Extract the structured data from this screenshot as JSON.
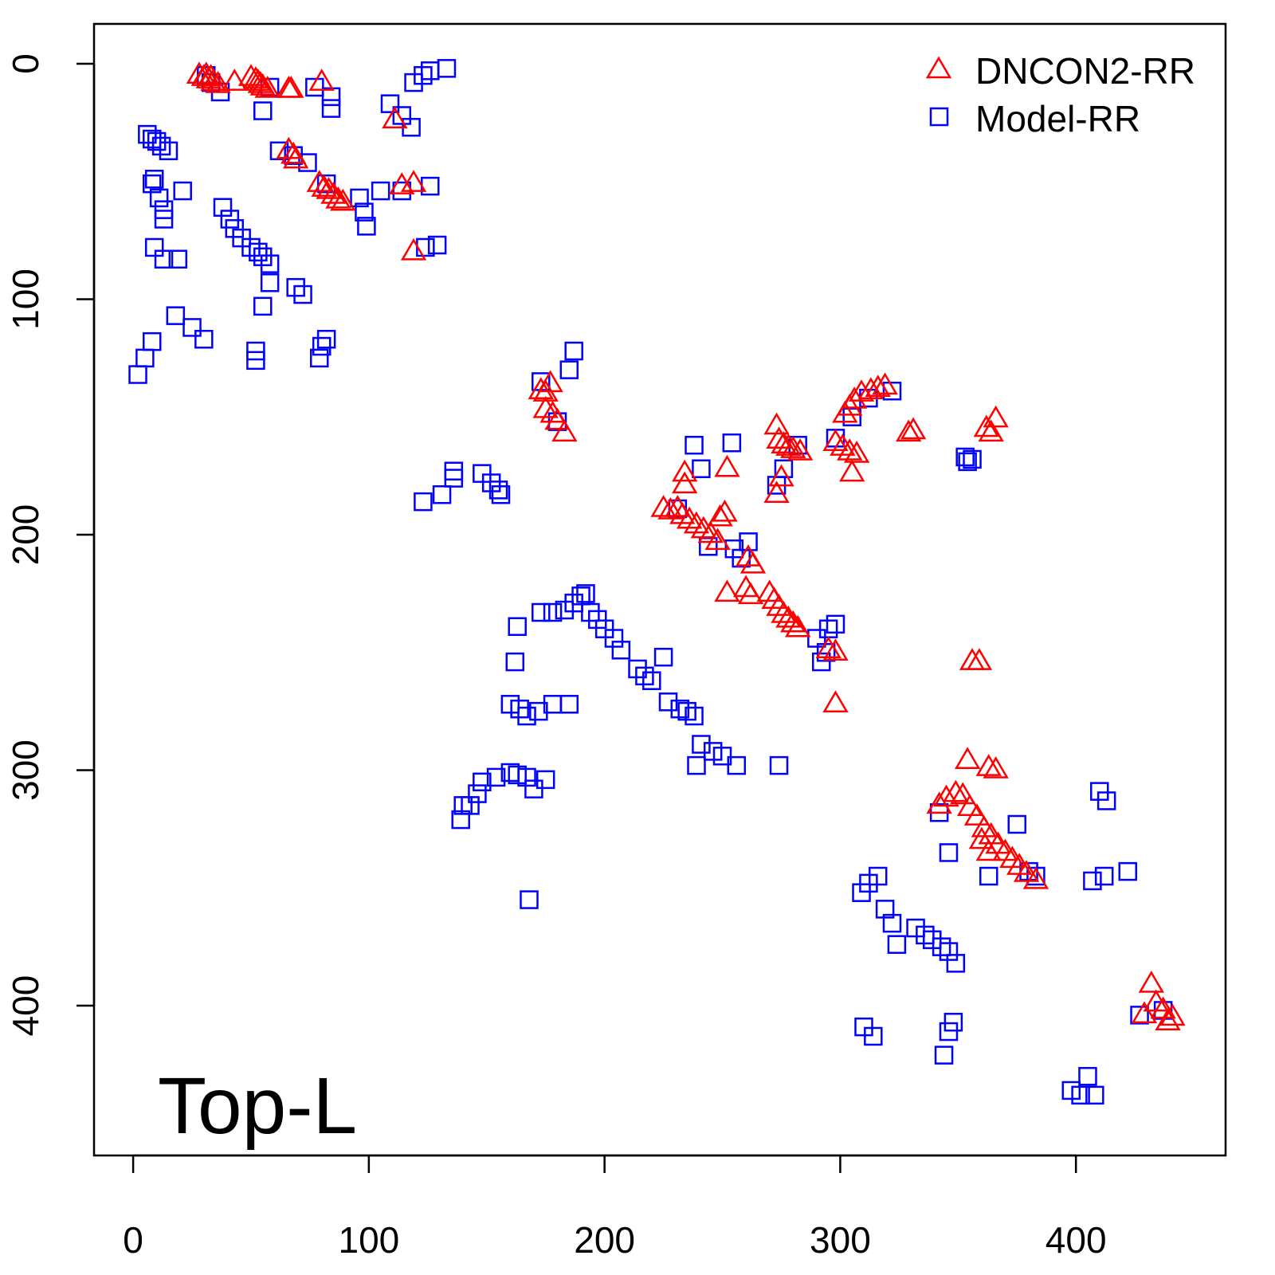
{
  "chart_data": {
    "type": "scatter",
    "title": "",
    "annotation": "Top-L",
    "xlabel": "",
    "ylabel": "",
    "xlim": [
      -16.6,
      463.5
    ],
    "ylim": [
      463.6,
      -16.9
    ],
    "y_inverted": true,
    "xticks": [
      0,
      100,
      200,
      300,
      400
    ],
    "yticks": [
      0,
      100,
      200,
      300,
      400
    ],
    "grid": false,
    "legend_position": "top-right",
    "series": [
      {
        "name": "DNCON2-RR",
        "marker": "triangle-open",
        "color": "#ff0000",
        "points": [
          [
            28,
            5
          ],
          [
            30,
            6
          ],
          [
            31,
            5
          ],
          [
            32,
            7
          ],
          [
            33,
            6
          ],
          [
            34,
            8
          ],
          [
            36,
            9
          ],
          [
            43,
            8
          ],
          [
            50,
            6
          ],
          [
            52,
            7
          ],
          [
            53,
            8
          ],
          [
            54,
            9
          ],
          [
            55,
            10
          ],
          [
            57,
            11
          ],
          [
            66,
            11
          ],
          [
            67,
            11
          ],
          [
            80,
            8
          ],
          [
            111,
            24
          ],
          [
            114,
            52
          ],
          [
            119,
            51
          ],
          [
            119,
            80
          ],
          [
            66,
            37
          ],
          [
            68,
            39
          ],
          [
            69,
            41
          ],
          [
            79,
            51
          ],
          [
            81,
            53
          ],
          [
            83,
            54
          ],
          [
            85,
            56
          ],
          [
            87,
            58
          ],
          [
            89,
            59
          ],
          [
            173,
            139
          ],
          [
            175,
            140
          ],
          [
            177,
            136
          ],
          [
            175,
            147
          ],
          [
            178,
            149
          ],
          [
            180,
            152
          ],
          [
            183,
            157
          ],
          [
            366,
            151
          ],
          [
            364,
            157
          ],
          [
            362,
            155
          ],
          [
            329,
            157
          ],
          [
            331,
            156
          ],
          [
            273,
            154
          ],
          [
            274,
            160
          ],
          [
            276,
            162
          ],
          [
            278,
            163
          ],
          [
            280,
            164
          ],
          [
            283,
            165
          ],
          [
            302,
            149
          ],
          [
            304,
            146
          ],
          [
            306,
            143
          ],
          [
            309,
            140
          ],
          [
            313,
            139
          ],
          [
            316,
            138
          ],
          [
            319,
            137
          ],
          [
            298,
            161
          ],
          [
            301,
            163
          ],
          [
            304,
            165
          ],
          [
            307,
            166
          ],
          [
            305,
            174
          ],
          [
            252,
            172
          ],
          [
            234,
            174
          ],
          [
            234,
            179
          ],
          [
            275,
            176
          ],
          [
            273,
            183
          ],
          [
            225,
            189
          ],
          [
            228,
            190
          ],
          [
            231,
            189
          ],
          [
            233,
            192
          ],
          [
            236,
            194
          ],
          [
            239,
            196
          ],
          [
            242,
            198
          ],
          [
            245,
            200
          ],
          [
            248,
            203
          ],
          [
            251,
            191
          ],
          [
            249,
            193
          ],
          [
            261,
            210
          ],
          [
            263,
            213
          ],
          [
            252,
            225
          ],
          [
            260,
            223
          ],
          [
            262,
            226
          ],
          [
            270,
            225
          ],
          [
            272,
            228
          ],
          [
            274,
            231
          ],
          [
            276,
            234
          ],
          [
            278,
            236
          ],
          [
            280,
            238
          ],
          [
            282,
            240
          ],
          [
            295,
            249
          ],
          [
            298,
            250
          ],
          [
            298,
            272
          ],
          [
            356,
            254
          ],
          [
            359,
            254
          ],
          [
            354,
            296
          ],
          [
            363,
            299
          ],
          [
            366,
            300
          ],
          [
            342,
            315
          ],
          [
            345,
            312
          ],
          [
            349,
            310
          ],
          [
            352,
            311
          ],
          [
            355,
            316
          ],
          [
            358,
            320
          ],
          [
            361,
            325
          ],
          [
            364,
            328
          ],
          [
            367,
            332
          ],
          [
            370,
            335
          ],
          [
            373,
            338
          ],
          [
            376,
            341
          ],
          [
            379,
            344
          ],
          [
            383,
            347
          ],
          [
            360,
            330
          ],
          [
            363,
            335
          ],
          [
            432,
            391
          ],
          [
            434,
            399
          ],
          [
            437,
            402
          ],
          [
            439,
            407
          ],
          [
            429,
            404
          ],
          [
            441,
            405
          ]
        ]
      },
      {
        "name": "Model-RR",
        "marker": "square-open",
        "color": "#0000ff",
        "points": [
          [
            31,
            5
          ],
          [
            33,
            8
          ],
          [
            37,
            12
          ],
          [
            58,
            10
          ],
          [
            55,
            20
          ],
          [
            84,
            14
          ],
          [
            84,
            19
          ],
          [
            77,
            10
          ],
          [
            109,
            17
          ],
          [
            114,
            22
          ],
          [
            118,
            27
          ],
          [
            119,
            8
          ],
          [
            123,
            5
          ],
          [
            126,
            3
          ],
          [
            133,
            2
          ],
          [
            6,
            30
          ],
          [
            8,
            32
          ],
          [
            10,
            33
          ],
          [
            12,
            35
          ],
          [
            15,
            37
          ],
          [
            8,
            51
          ],
          [
            9,
            49
          ],
          [
            11,
            57
          ],
          [
            13,
            62
          ],
          [
            13,
            66
          ],
          [
            21,
            54
          ],
          [
            9,
            78
          ],
          [
            13,
            83
          ],
          [
            19,
            83
          ],
          [
            38,
            61
          ],
          [
            41,
            66
          ],
          [
            43,
            70
          ],
          [
            46,
            74
          ],
          [
            50,
            78
          ],
          [
            53,
            80
          ],
          [
            55,
            82
          ],
          [
            58,
            85
          ],
          [
            58,
            93
          ],
          [
            69,
            95
          ],
          [
            72,
            98
          ],
          [
            55,
            103
          ],
          [
            62,
            37
          ],
          [
            68,
            39
          ],
          [
            74,
            42
          ],
          [
            82,
            51
          ],
          [
            96,
            57
          ],
          [
            98,
            63
          ],
          [
            99,
            69
          ],
          [
            105,
            54
          ],
          [
            114,
            54
          ],
          [
            126,
            52
          ],
          [
            124,
            78
          ],
          [
            129,
            77
          ],
          [
            18,
            107
          ],
          [
            25,
            112
          ],
          [
            30,
            117
          ],
          [
            8,
            118
          ],
          [
            5,
            125
          ],
          [
            2,
            132
          ],
          [
            52,
            122
          ],
          [
            52,
            126
          ],
          [
            79,
            125
          ],
          [
            82,
            117
          ],
          [
            80,
            120
          ],
          [
            173,
            135
          ],
          [
            187,
            122
          ],
          [
            185,
            130
          ],
          [
            180,
            152
          ],
          [
            136,
            176
          ],
          [
            136,
            173
          ],
          [
            131,
            183
          ],
          [
            123,
            186
          ],
          [
            148,
            174
          ],
          [
            152,
            178
          ],
          [
            155,
            181
          ],
          [
            156,
            183
          ],
          [
            163,
            239
          ],
          [
            173,
            233
          ],
          [
            178,
            233
          ],
          [
            183,
            232
          ],
          [
            187,
            229
          ],
          [
            190,
            226
          ],
          [
            192,
            225
          ],
          [
            194,
            233
          ],
          [
            197,
            236
          ],
          [
            200,
            240
          ],
          [
            204,
            244
          ],
          [
            207,
            249
          ],
          [
            214,
            257
          ],
          [
            217,
            260
          ],
          [
            220,
            262
          ],
          [
            225,
            252
          ],
          [
            227,
            271
          ],
          [
            232,
            274
          ],
          [
            235,
            275
          ],
          [
            238,
            277
          ],
          [
            241,
            289
          ],
          [
            246,
            292
          ],
          [
            250,
            294
          ],
          [
            256,
            298
          ],
          [
            239,
            298
          ],
          [
            274,
            298
          ],
          [
            162,
            254
          ],
          [
            160,
            272
          ],
          [
            164,
            274
          ],
          [
            167,
            277
          ],
          [
            172,
            275
          ],
          [
            178,
            272
          ],
          [
            185,
            272
          ],
          [
            139,
            321
          ],
          [
            140,
            315
          ],
          [
            143,
            315
          ],
          [
            146,
            310
          ],
          [
            148,
            305
          ],
          [
            154,
            303
          ],
          [
            160,
            301
          ],
          [
            163,
            302
          ],
          [
            167,
            303
          ],
          [
            170,
            308
          ],
          [
            175,
            304
          ],
          [
            168,
            355
          ],
          [
            295,
            240
          ],
          [
            298,
            238
          ],
          [
            290,
            244
          ],
          [
            292,
            254
          ],
          [
            294,
            250
          ],
          [
            261,
            203
          ],
          [
            255,
            206
          ],
          [
            258,
            210
          ],
          [
            241,
            172
          ],
          [
            238,
            162
          ],
          [
            254,
            161
          ],
          [
            231,
            189
          ],
          [
            244,
            205
          ],
          [
            298,
            159
          ],
          [
            305,
            150
          ],
          [
            312,
            142
          ],
          [
            322,
            139
          ],
          [
            353,
            167
          ],
          [
            354,
            169
          ],
          [
            356,
            168
          ],
          [
            282,
            162
          ],
          [
            273,
            179
          ],
          [
            276,
            172
          ],
          [
            309,
            352
          ],
          [
            312,
            348
          ],
          [
            316,
            345
          ],
          [
            319,
            359
          ],
          [
            322,
            365
          ],
          [
            324,
            374
          ],
          [
            332,
            367
          ],
          [
            336,
            370
          ],
          [
            339,
            372
          ],
          [
            343,
            375
          ],
          [
            346,
            377
          ],
          [
            349,
            382
          ],
          [
            363,
            345
          ],
          [
            375,
            323
          ],
          [
            410,
            309
          ],
          [
            413,
            313
          ],
          [
            407,
            347
          ],
          [
            412,
            345
          ],
          [
            422,
            343
          ],
          [
            310,
            409
          ],
          [
            314,
            413
          ],
          [
            348,
            407
          ],
          [
            346,
            411
          ],
          [
            344,
            421
          ],
          [
            398,
            436
          ],
          [
            405,
            430
          ],
          [
            408,
            438
          ],
          [
            402,
            438
          ],
          [
            427,
            404
          ],
          [
            437,
            402
          ],
          [
            346,
            335
          ],
          [
            383,
            345
          ],
          [
            342,
            318
          ],
          [
            380,
            343
          ]
        ]
      }
    ]
  }
}
